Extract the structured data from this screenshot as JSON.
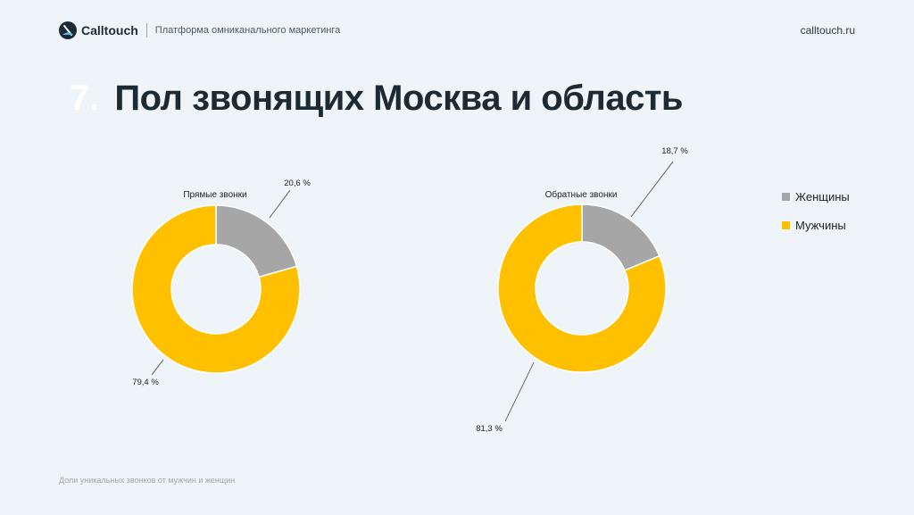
{
  "header": {
    "brand": "Calltouch",
    "tagline": "Платформа омниканального маркетинга",
    "site": "calltouch.ru"
  },
  "title": {
    "number": "7.",
    "text": "Пол звонящих Москва и область"
  },
  "legend": [
    {
      "label": "Женщины",
      "color": "#a6a6a6"
    },
    {
      "label": "Мужчины",
      "color": "#ffc000"
    }
  ],
  "footnote": "Доли уникальных звонков от мужчин и женщин",
  "chart_data": [
    {
      "type": "pie",
      "title": "Прямые звонки",
      "categories": [
        "Женщины",
        "Мужчины"
      ],
      "values": [
        20.6,
        79.4
      ],
      "labels": [
        "20,6 %",
        "79,4 %"
      ],
      "colors": [
        "#a6a6a6",
        "#ffc000"
      ],
      "legend": "right"
    },
    {
      "type": "pie",
      "title": "Обратные звонки",
      "categories": [
        "Женщины",
        "Мужчины"
      ],
      "values": [
        18.7,
        81.3
      ],
      "labels": [
        "18,7 %",
        "81,3 %"
      ],
      "colors": [
        "#a6a6a6",
        "#ffc000"
      ],
      "legend": "right"
    }
  ]
}
